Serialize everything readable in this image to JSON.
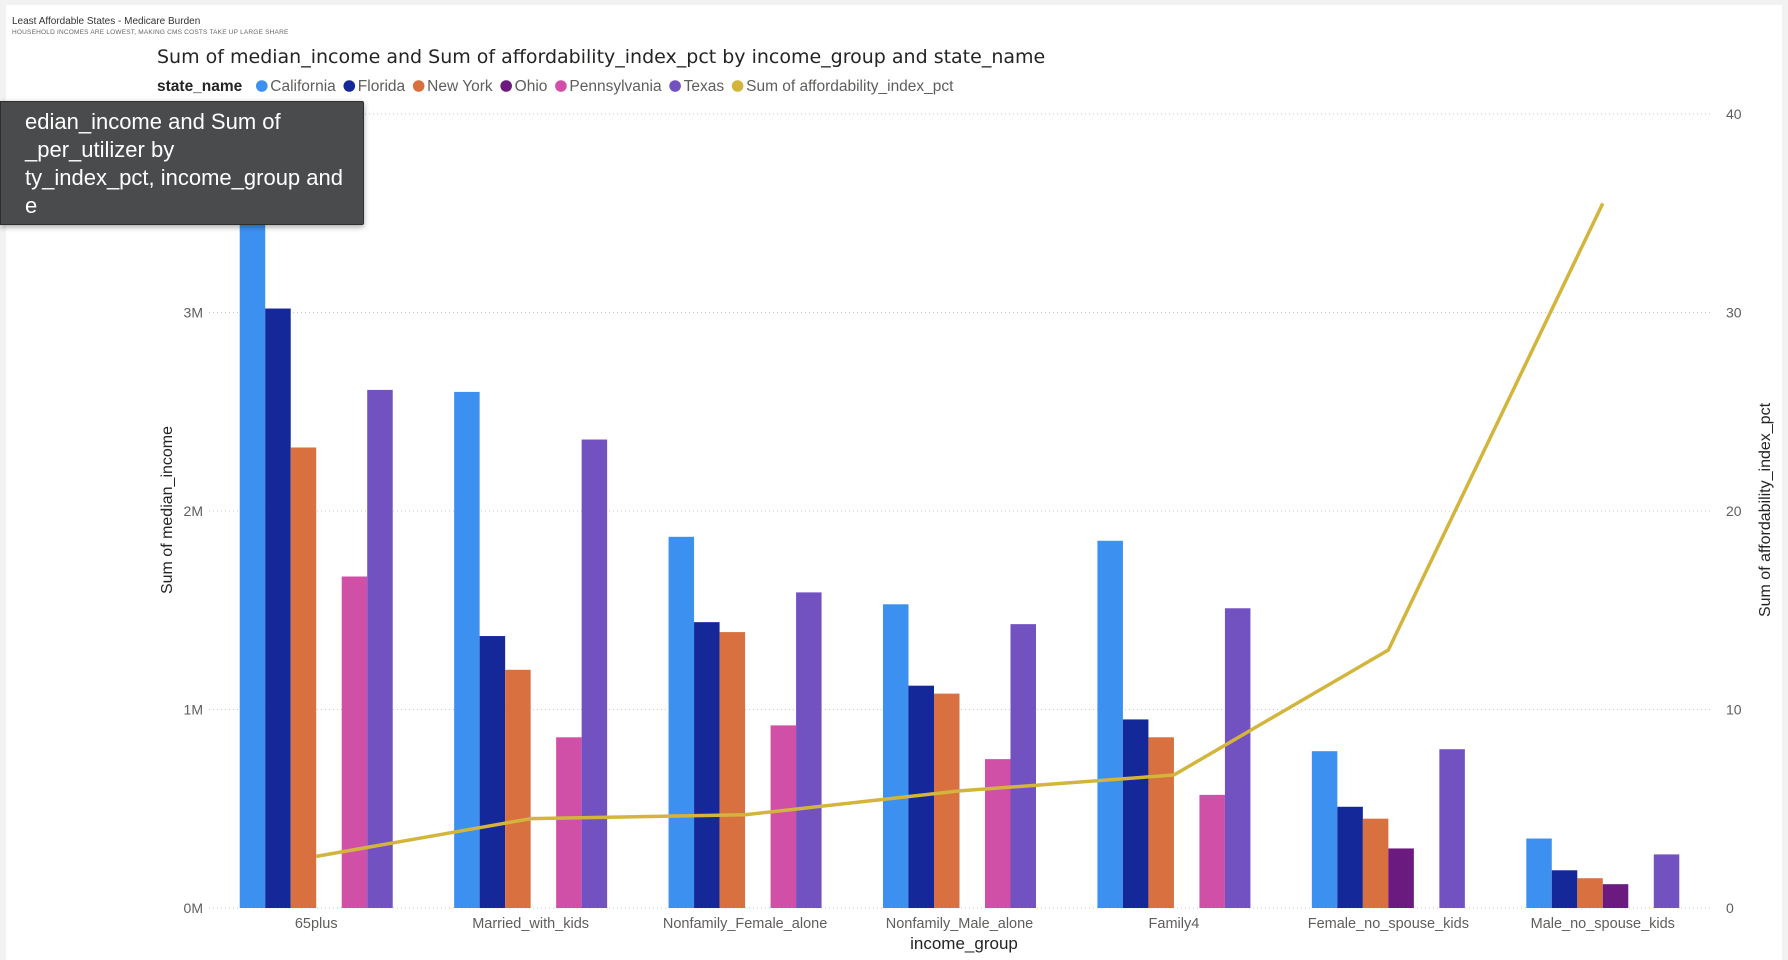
{
  "page": {
    "title": "Least Affordable States - Medicare Burden",
    "subtitle": "HOUSEHOLD INCOMES ARE LOWEST, MAKING CMS COSTS TAKE UP LARGE SHARE"
  },
  "tooltip": {
    "lines": [
      "edian_income and Sum of",
      "_per_utilizer by",
      "ty_index_pct, income_group and",
      "e"
    ]
  },
  "chart_data": {
    "type": "bar",
    "title": "Sum of median_income and Sum of affordability_index_pct by income_group and state_name",
    "legend_title": "state_name",
    "legend_position": "top-left",
    "xlabel": "income_group",
    "ylabel": "Sum of median_income",
    "y2label": "Sum of affordability_index_pct",
    "ylim": [
      0,
      4000000
    ],
    "y2lim": [
      0,
      40
    ],
    "yticks": [
      0,
      1000000,
      2000000,
      3000000
    ],
    "ytick_labels": [
      "0M",
      "1M",
      "2M",
      "3M"
    ],
    "y2ticks": [
      0,
      10,
      20,
      30,
      40
    ],
    "y2tick_labels": [
      "0",
      "10",
      "20",
      "30",
      "40"
    ],
    "grid": true,
    "categories": [
      "65plus",
      "Married_with_kids",
      "Nonfamily_Female_alone",
      "Nonfamily_Male_alone",
      "Family4",
      "Female_no_spouse_kids",
      "Male_no_spouse_kids"
    ],
    "series": [
      {
        "name": "California",
        "color": "#3c91f0",
        "values": [
          4000000,
          2600000,
          1870000,
          1530000,
          1850000,
          790000,
          350000
        ]
      },
      {
        "name": "Florida",
        "color": "#14289a",
        "values": [
          3020000,
          1370000,
          1440000,
          1120000,
          950000,
          510000,
          190000
        ]
      },
      {
        "name": "New York",
        "color": "#d8703f",
        "values": [
          2320000,
          1200000,
          1390000,
          1080000,
          860000,
          450000,
          150000
        ]
      },
      {
        "name": "Ohio",
        "color": "#6b1a7f",
        "values": [
          null,
          null,
          null,
          null,
          null,
          300000,
          120000
        ]
      },
      {
        "name": "Pennsylvania",
        "color": "#d050a8",
        "values": [
          1670000,
          860000,
          920000,
          750000,
          570000,
          null,
          null
        ]
      },
      {
        "name": "Texas",
        "color": "#7252c0",
        "values": [
          2610000,
          2360000,
          1590000,
          1430000,
          1510000,
          800000,
          270000
        ]
      }
    ],
    "line_series": {
      "name": "Sum of affordability_index_pct",
      "color": "#d3b53c",
      "values": [
        2.6,
        4.5,
        4.7,
        5.9,
        6.7,
        13.0,
        35.5
      ]
    }
  }
}
